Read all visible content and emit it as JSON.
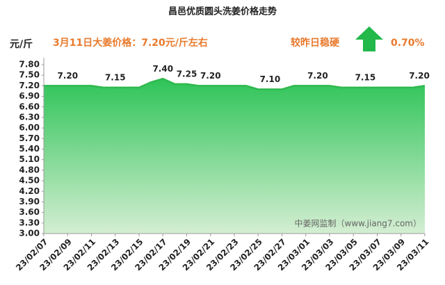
{
  "chart_data": {
    "type": "area_line",
    "title": "昌邑优质圆头洗姜价格走势",
    "y_label": "元/斤",
    "annotations": [
      "3月11日大姜价格：7.20元/斤左右",
      "较昨日稳硬",
      "0.70%"
    ],
    "watermark": "中姜网监制（www.jiang7.com）",
    "categories": [
      "23/02/07",
      null,
      "23/02/09",
      null,
      "23/02/11",
      null,
      "23/02/13",
      null,
      "23/02/15",
      null,
      "23/02/17",
      null,
      "23/02/19",
      null,
      "23/02/21",
      null,
      "23/02/23",
      null,
      "23/02/25",
      null,
      "23/02/27",
      null,
      "23/03/01",
      null,
      "23/03/03",
      null,
      "23/03/05",
      null,
      "23/03/07",
      null,
      "23/03/09",
      null,
      "23/03/11"
    ],
    "values": [
      7.2,
      7.2,
      7.2,
      7.2,
      7.2,
      7.15,
      7.15,
      7.15,
      7.15,
      7.3,
      7.4,
      7.25,
      7.25,
      7.2,
      7.2,
      7.2,
      7.2,
      7.2,
      7.1,
      7.1,
      7.1,
      7.2,
      7.2,
      7.2,
      7.2,
      7.15,
      7.15,
      7.15,
      7.15,
      7.15,
      7.15,
      7.15,
      7.2
    ],
    "value_labels": [
      null,
      null,
      "7.20",
      null,
      null,
      null,
      "7.15",
      null,
      null,
      null,
      "7.40",
      null,
      "7.25",
      null,
      "7.20",
      null,
      null,
      null,
      null,
      "7.10",
      null,
      null,
      null,
      "7.20",
      null,
      null,
      null,
      "7.15",
      null,
      null,
      null,
      null,
      "7.20"
    ],
    "color": "#2fb94e",
    "ylim": [
      3,
      7.8
    ],
    "yticks": [
      {
        "value": 3,
        "label": "3.00"
      },
      {
        "value": 3.3,
        "label": "3.30"
      },
      {
        "value": 3.6,
        "label": "3.60"
      },
      {
        "value": 3.9,
        "label": "3.90"
      },
      {
        "value": 4.2,
        "label": "4.20"
      },
      {
        "value": 4.5,
        "label": "4.50"
      },
      {
        "value": 4.8,
        "label": "4.80"
      },
      {
        "value": 5.1,
        "label": "5.10"
      },
      {
        "value": 5.4,
        "label": "5.40"
      },
      {
        "value": 5.7,
        "label": "5.70"
      },
      {
        "value": 6,
        "label": "6.00"
      },
      {
        "value": 6.3,
        "label": "6.30"
      },
      {
        "value": 6.6,
        "label": "6.60"
      },
      {
        "value": 6.9,
        "label": "6.90"
      },
      {
        "value": 7.2,
        "label": "7.20"
      },
      {
        "value": 7.5,
        "label": "7.50"
      },
      {
        "value": 7.8,
        "label": "7.80"
      }
    ],
    "grid": false
  }
}
